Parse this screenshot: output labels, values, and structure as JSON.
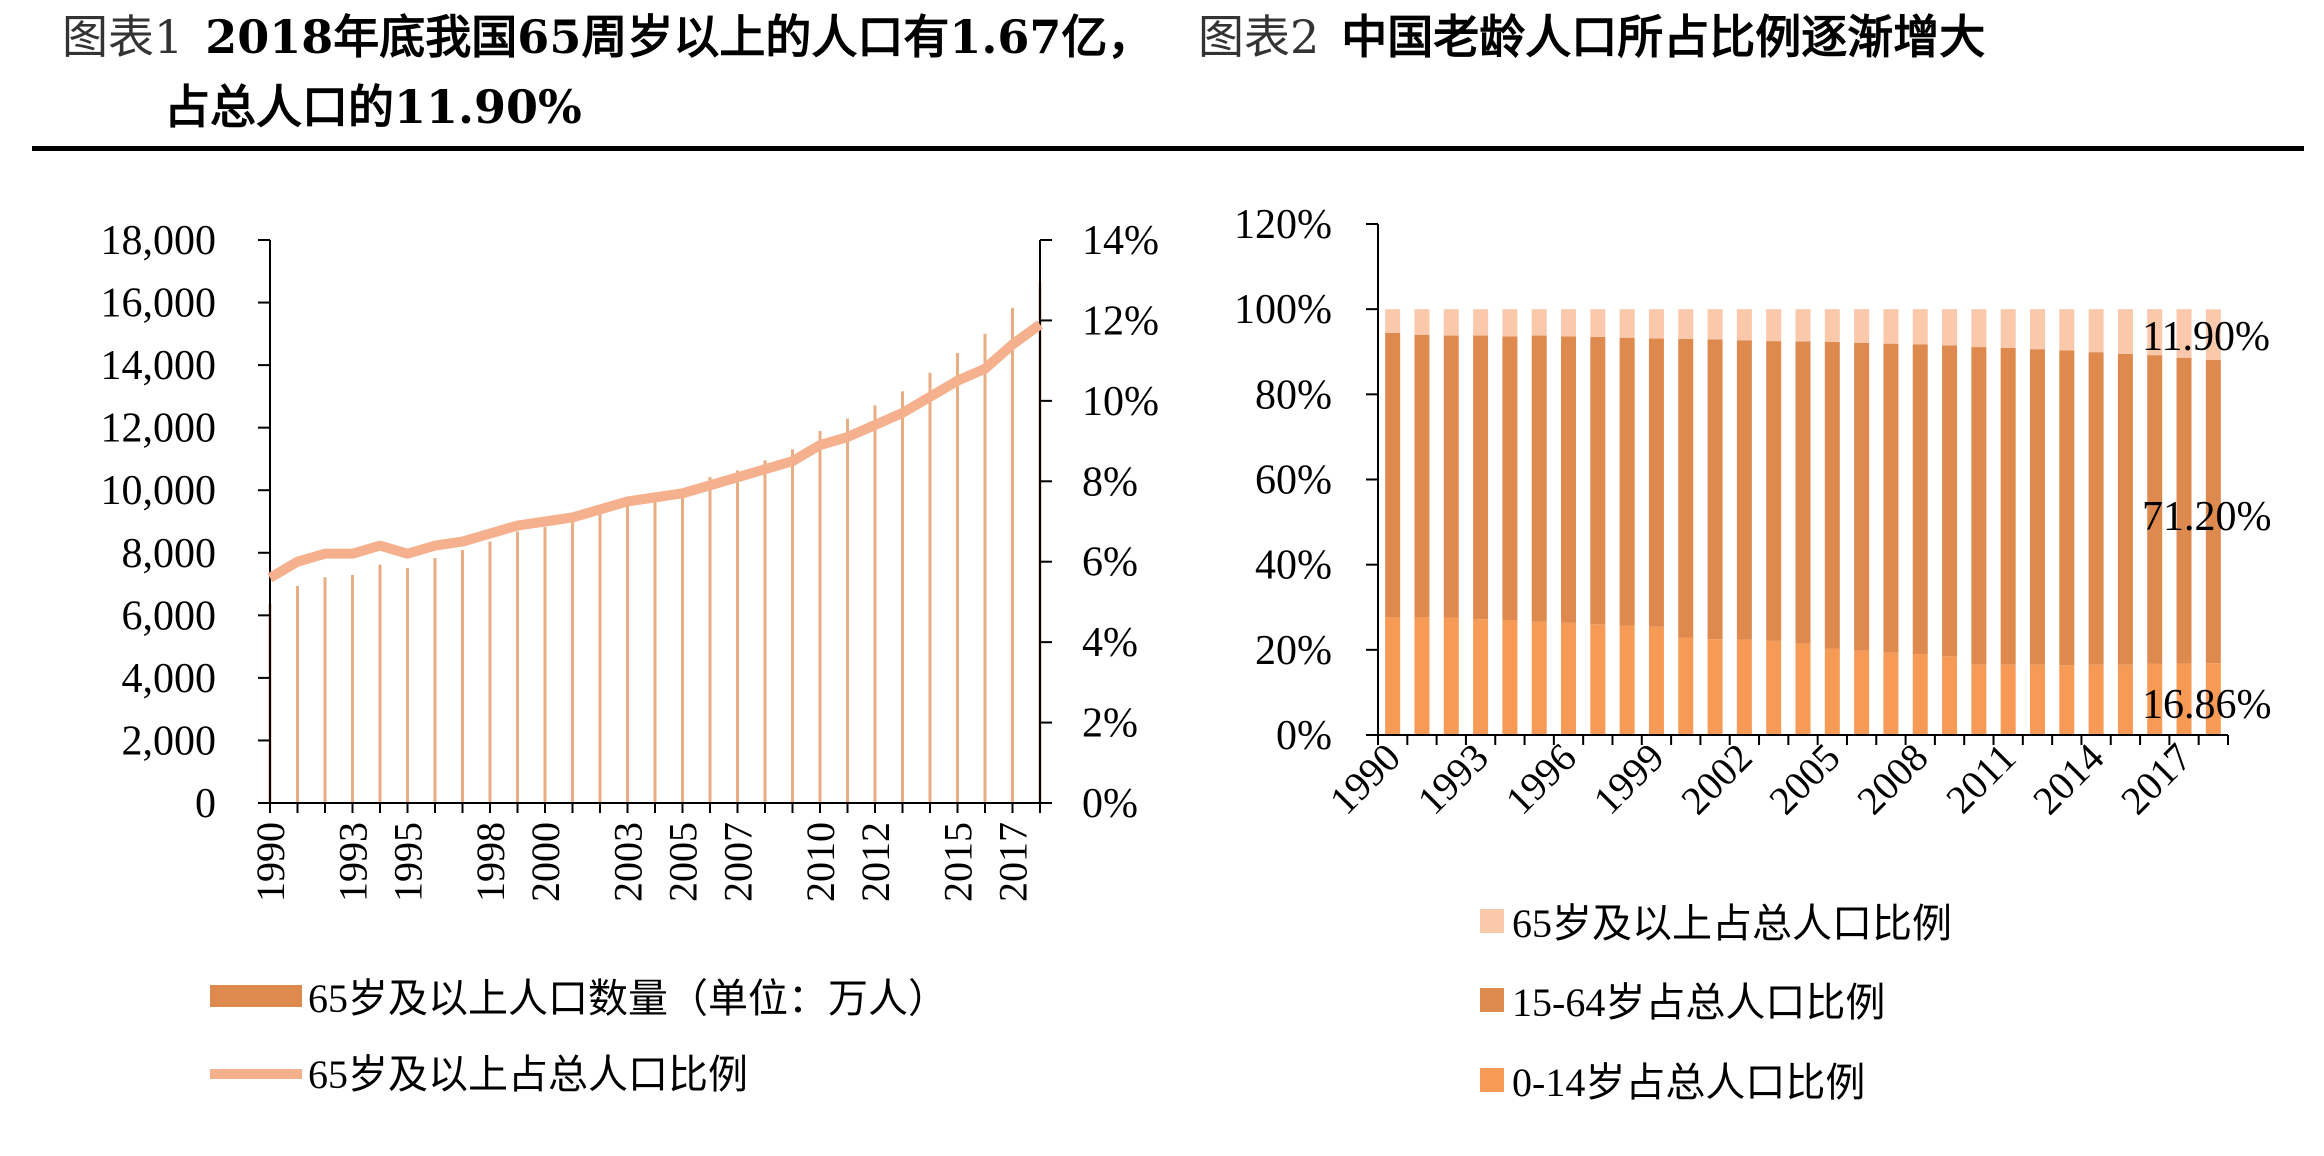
{
  "figure1": {
    "label": "图表1",
    "title_line1": "2018年底我国65周岁以上的人口有1.67亿，",
    "title_line2": "占总人口的11.90%"
  },
  "figure2": {
    "label": "图表2",
    "title": "中国老龄人口所占比例逐渐增大"
  },
  "chart_data": [
    {
      "type": "bar",
      "secondary_type": "line",
      "x": [
        "1990",
        "1991",
        "1992",
        "1993",
        "1994",
        "1995",
        "1996",
        "1997",
        "1998",
        "1999",
        "2000",
        "2001",
        "2002",
        "2003",
        "2004",
        "2005",
        "2006",
        "2007",
        "2008",
        "2009",
        "2010",
        "2011",
        "2012",
        "2013",
        "2014",
        "2015",
        "2016",
        "2017",
        "2018"
      ],
      "x_tick_labels": [
        "1990",
        "1993",
        "1995",
        "1998",
        "2000",
        "2003",
        "2005",
        "2007",
        "2010",
        "2012",
        "2015",
        "2017"
      ],
      "x_tick_indices": [
        0,
        3,
        5,
        8,
        10,
        13,
        15,
        17,
        20,
        22,
        25,
        27
      ],
      "series": [
        {
          "name": "65岁及以上人口数量（单位：万人）",
          "axis": "left",
          "color": "#DE8A4F",
          "values": [
            6368,
            6938,
            7218,
            7289,
            7622,
            7510,
            7833,
            8085,
            8359,
            8679,
            8821,
            9062,
            9377,
            9692,
            9857,
            10055,
            10419,
            10636,
            10956,
            11307,
            11894,
            12288,
            12714,
            13161,
            13755,
            14386,
            15003,
            15831,
            16658
          ]
        },
        {
          "name": "65岁及以上占总人口比例",
          "axis": "right",
          "color": "#F5B18E",
          "values": [
            5.6,
            6.0,
            6.2,
            6.2,
            6.4,
            6.2,
            6.4,
            6.5,
            6.7,
            6.9,
            7.0,
            7.1,
            7.3,
            7.5,
            7.6,
            7.7,
            7.9,
            8.1,
            8.3,
            8.5,
            8.9,
            9.1,
            9.4,
            9.7,
            10.1,
            10.5,
            10.8,
            11.4,
            11.9
          ]
        }
      ],
      "ylim": [
        0,
        18000
      ],
      "yticks": [
        "0",
        "2,000",
        "4,000",
        "6,000",
        "8,000",
        "10,000",
        "12,000",
        "14,000",
        "16,000",
        "18,000"
      ],
      "y2lim": [
        0,
        14
      ],
      "y2ticks": [
        "0%",
        "2%",
        "4%",
        "6%",
        "8%",
        "10%",
        "12%",
        "14%"
      ],
      "legend_position": "bottom"
    },
    {
      "type": "bar",
      "stacked": true,
      "x": [
        "1990",
        "1991",
        "1992",
        "1993",
        "1994",
        "1995",
        "1996",
        "1997",
        "1998",
        "1999",
        "2000",
        "2001",
        "2002",
        "2003",
        "2004",
        "2005",
        "2006",
        "2007",
        "2008",
        "2009",
        "2010",
        "2011",
        "2012",
        "2013",
        "2014",
        "2015",
        "2016",
        "2017",
        "2018"
      ],
      "x_tick_labels": [
        "1990",
        "1993",
        "1996",
        "1999",
        "2002",
        "2005",
        "2008",
        "2011",
        "2014",
        "2017"
      ],
      "x_tick_indices": [
        0,
        3,
        6,
        9,
        12,
        15,
        18,
        21,
        24,
        27
      ],
      "series": [
        {
          "name": "0-14岁占总人口比例",
          "color": "#F79A55",
          "values": [
            27.7,
            27.7,
            27.6,
            27.2,
            27.0,
            26.6,
            26.4,
            26.0,
            25.7,
            25.4,
            22.9,
            22.5,
            22.4,
            22.1,
            21.5,
            20.3,
            19.8,
            19.4,
            19.0,
            18.5,
            16.6,
            16.5,
            16.5,
            16.4,
            16.5,
            16.5,
            16.7,
            16.8,
            16.86
          ]
        },
        {
          "name": "15-64岁占总人口比例",
          "color": "#DE8A4F",
          "values": [
            66.7,
            66.3,
            66.2,
            66.6,
            66.6,
            67.2,
            67.2,
            67.5,
            67.6,
            67.7,
            70.1,
            70.4,
            70.3,
            70.4,
            70.9,
            72.0,
            72.3,
            72.5,
            72.7,
            73.0,
            74.5,
            74.4,
            74.1,
            73.9,
            73.4,
            73.0,
            72.5,
            71.8,
            71.2
          ]
        },
        {
          "name": "65岁及以上占总人口比例",
          "color": "#FAC8AA",
          "values": [
            5.6,
            6.0,
            6.2,
            6.2,
            6.4,
            6.2,
            6.4,
            6.5,
            6.7,
            6.9,
            7.0,
            7.1,
            7.3,
            7.5,
            7.6,
            7.7,
            7.9,
            8.1,
            8.3,
            8.5,
            8.9,
            9.1,
            9.4,
            9.7,
            10.1,
            10.5,
            10.8,
            11.4,
            11.9
          ]
        }
      ],
      "data_labels": [
        "11.90%",
        "71.20%",
        "16.86%"
      ],
      "ylim": [
        0,
        120
      ],
      "yticks": [
        "0%",
        "20%",
        "40%",
        "60%",
        "80%",
        "100%",
        "120%"
      ],
      "legend_position": "bottom"
    }
  ]
}
